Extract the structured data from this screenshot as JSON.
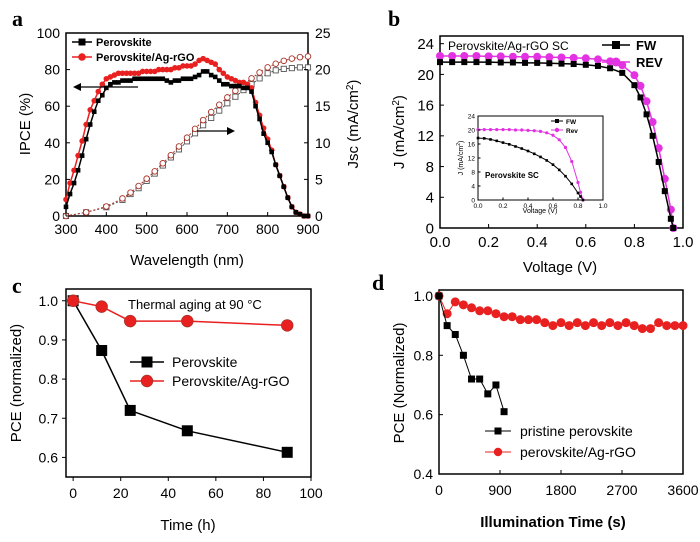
{
  "colors": {
    "black": "#000000",
    "red": "#e8201f",
    "magenta": "#e232e2",
    "brown": "#a83228",
    "grey": "#555555"
  },
  "chart_data": [
    {
      "panel": "a",
      "type": "line",
      "title": "",
      "xlabel": "Wavelength (nm)",
      "ylabel": "IPCE (%)",
      "y2label": "Jsc (mA/cm²)",
      "y2label_main": "Jsc (mA/cm",
      "y2label_sup": "2",
      "y2label_close": ")",
      "xlim": [
        300,
        900
      ],
      "ylim": [
        0,
        100
      ],
      "y2lim": [
        0,
        25
      ],
      "xticks": [
        300,
        400,
        500,
        600,
        700,
        800,
        900
      ],
      "yticks": [
        0,
        20,
        40,
        60,
        80,
        100
      ],
      "y2ticks": [
        0,
        5,
        10,
        15,
        20,
        25
      ],
      "legend": {
        "position": "top-left",
        "entries": [
          "Perovskite",
          "Perovskite/Ag-rGO"
        ]
      },
      "series": [
        {
          "name": "Perovskite",
          "kind": "IPCE",
          "axis": "left",
          "x": [
            300,
            310,
            320,
            330,
            340,
            350,
            360,
            370,
            380,
            390,
            400,
            410,
            420,
            430,
            440,
            450,
            460,
            470,
            480,
            490,
            500,
            510,
            520,
            530,
            540,
            550,
            560,
            570,
            580,
            590,
            600,
            610,
            620,
            630,
            640,
            650,
            660,
            670,
            680,
            690,
            700,
            710,
            720,
            730,
            740,
            750,
            760,
            770,
            780,
            790,
            800,
            810,
            820,
            830,
            840,
            850,
            860,
            870,
            880,
            890,
            900
          ],
          "y": [
            5,
            12,
            18,
            25,
            33,
            42,
            50,
            57,
            63,
            66,
            70,
            72,
            73,
            73,
            74,
            74,
            74,
            75,
            75,
            75,
            75,
            75,
            75,
            75,
            75,
            74,
            73,
            74,
            74,
            75,
            75,
            75,
            76,
            77,
            79,
            79,
            77,
            76,
            74,
            72,
            72,
            71,
            71,
            71,
            70,
            70,
            68,
            60,
            53,
            45,
            40,
            35,
            28,
            22,
            16,
            10,
            5,
            2,
            1,
            0,
            0
          ]
        },
        {
          "name": "Perovskite/Ag-rGO",
          "kind": "IPCE",
          "axis": "left",
          "x": [
            300,
            310,
            320,
            330,
            340,
            350,
            360,
            370,
            380,
            390,
            400,
            410,
            420,
            430,
            440,
            450,
            460,
            470,
            480,
            490,
            500,
            510,
            520,
            530,
            540,
            550,
            560,
            570,
            580,
            590,
            600,
            610,
            620,
            630,
            640,
            650,
            660,
            670,
            680,
            690,
            700,
            710,
            720,
            730,
            740,
            750,
            760,
            770,
            780,
            790,
            800,
            810,
            820,
            830,
            840,
            850,
            860,
            870,
            880,
            890,
            900
          ],
          "y": [
            9,
            18,
            25,
            33,
            41,
            50,
            58,
            63,
            68,
            72,
            75,
            76,
            77,
            78,
            78,
            78,
            78,
            78,
            78,
            79,
            79,
            79,
            79,
            80,
            80,
            80,
            80,
            81,
            81,
            82,
            82,
            82,
            83,
            85,
            86,
            85,
            84,
            83,
            80,
            78,
            76,
            75,
            74,
            73,
            73,
            72,
            70,
            62,
            55,
            48,
            42,
            36,
            28,
            22,
            16,
            10,
            5,
            2,
            1,
            0,
            0
          ]
        },
        {
          "name": "Perovskite",
          "kind": "Jsc",
          "axis": "right",
          "x": [
            300,
            350,
            400,
            440,
            460,
            480,
            500,
            520,
            540,
            560,
            580,
            600,
            620,
            640,
            660,
            680,
            700,
            720,
            740,
            760,
            780,
            800,
            820,
            840,
            860,
            880,
            900
          ],
          "y": [
            0,
            0.5,
            1.2,
            2.2,
            3.0,
            3.8,
            4.8,
            5.8,
            6.9,
            8.0,
            9.1,
            10.2,
            11.3,
            12.4,
            13.4,
            14.4,
            15.4,
            16.3,
            17.2,
            18.0,
            18.8,
            19.5,
            19.9,
            20.1,
            20.2,
            20.3,
            20.3
          ]
        },
        {
          "name": "Perovskite/Ag-rGO",
          "kind": "Jsc",
          "axis": "right",
          "x": [
            300,
            350,
            400,
            440,
            460,
            480,
            500,
            520,
            540,
            560,
            580,
            600,
            620,
            640,
            660,
            680,
            700,
            720,
            740,
            760,
            780,
            800,
            820,
            840,
            860,
            880,
            900
          ],
          "y": [
            0,
            0.5,
            1.3,
            2.4,
            3.2,
            4.1,
            5.1,
            6.1,
            7.2,
            8.3,
            9.5,
            10.7,
            11.9,
            13.1,
            14.2,
            15.2,
            16.2,
            17.1,
            18.0,
            18.8,
            19.6,
            20.3,
            20.8,
            21.2,
            21.5,
            21.7,
            21.8
          ]
        }
      ]
    },
    {
      "panel": "b",
      "type": "line",
      "title": "Perovskite/Ag-rGO SC",
      "xlabel": "Voltage (V)",
      "ylabel": "J (mA/cm²)",
      "ylabel_main": "J (mA/cm",
      "ylabel_sup": "2",
      "ylabel_close": ")",
      "xlim": [
        0.0,
        1.0
      ],
      "ylim": [
        0,
        25
      ],
      "xticks": [
        0.0,
        0.2,
        0.4,
        0.6,
        0.8,
        1.0
      ],
      "yticks": [
        0,
        4,
        8,
        12,
        16,
        20,
        24
      ],
      "legend": {
        "position": "top-right",
        "entries": [
          "FW",
          "REV"
        ]
      },
      "series": [
        {
          "name": "FW",
          "x": [
            0.0,
            0.05,
            0.1,
            0.15,
            0.2,
            0.25,
            0.3,
            0.35,
            0.4,
            0.45,
            0.5,
            0.55,
            0.6,
            0.65,
            0.7,
            0.75,
            0.8,
            0.825,
            0.85,
            0.875,
            0.9,
            0.925,
            0.95,
            0.96
          ],
          "y": [
            21.6,
            21.6,
            21.6,
            21.6,
            21.6,
            21.55,
            21.55,
            21.5,
            21.5,
            21.45,
            21.4,
            21.35,
            21.25,
            21.1,
            20.8,
            20.2,
            18.6,
            17.0,
            14.8,
            12.0,
            8.6,
            4.8,
            1.2,
            0
          ]
        },
        {
          "name": "REV",
          "x": [
            0.0,
            0.05,
            0.1,
            0.15,
            0.2,
            0.25,
            0.3,
            0.35,
            0.4,
            0.45,
            0.5,
            0.55,
            0.6,
            0.65,
            0.7,
            0.75,
            0.8,
            0.825,
            0.85,
            0.875,
            0.9,
            0.925,
            0.95,
            0.96
          ],
          "y": [
            22.4,
            22.4,
            22.4,
            22.4,
            22.35,
            22.35,
            22.3,
            22.3,
            22.3,
            22.25,
            22.2,
            22.15,
            22.1,
            21.95,
            21.7,
            21.2,
            19.9,
            18.5,
            16.5,
            13.8,
            10.4,
            6.4,
            2.4,
            0
          ]
        }
      ],
      "inset": {
        "title": "Perovskite SC",
        "xlabel": "Voltage (V)",
        "ylabel": "J (mA/cm²)",
        "ylabel_main": "J (mA/cm",
        "ylabel_sup": "2",
        "ylabel_close": ")",
        "xlim": [
          0.0,
          1.0
        ],
        "ylim": [
          0,
          24
        ],
        "xticks": [
          0.0,
          0.2,
          0.4,
          0.6,
          0.8,
          1.0
        ],
        "yticks": [
          0,
          4,
          8,
          12,
          16,
          20,
          24
        ],
        "legend": {
          "position": "top-right",
          "entries": [
            "FW",
            "Rev"
          ]
        },
        "series": [
          {
            "name": "FW",
            "x": [
              0.0,
              0.05,
              0.1,
              0.15,
              0.2,
              0.25,
              0.3,
              0.35,
              0.4,
              0.45,
              0.5,
              0.55,
              0.6,
              0.65,
              0.7,
              0.75,
              0.8,
              0.82,
              0.84
            ],
            "y": [
              17.7,
              17.6,
              17.3,
              16.9,
              16.4,
              15.9,
              15.3,
              14.7,
              14.0,
              13.2,
              12.3,
              11.3,
              10.1,
              8.6,
              6.8,
              4.6,
              2.0,
              1.0,
              0
            ]
          },
          {
            "name": "Rev",
            "x": [
              0.0,
              0.05,
              0.1,
              0.15,
              0.2,
              0.25,
              0.3,
              0.35,
              0.4,
              0.45,
              0.5,
              0.55,
              0.6,
              0.65,
              0.7,
              0.75,
              0.8,
              0.82,
              0.84
            ],
            "y": [
              20.1,
              20.1,
              20.1,
              20.1,
              20.1,
              20.1,
              20.0,
              20.0,
              19.9,
              19.8,
              19.6,
              19.2,
              18.5,
              17.2,
              15.0,
              11.0,
              5.0,
              2.2,
              0
            ]
          }
        ]
      }
    },
    {
      "panel": "c",
      "type": "line",
      "title": "Thermal aging at 90 °C",
      "xlabel": "Time (h)",
      "ylabel": "PCE (normalized)",
      "xlim": [
        -3,
        100
      ],
      "ylim": [
        0.55,
        1.03
      ],
      "xticks": [
        0,
        20,
        40,
        60,
        80,
        100
      ],
      "yticks": [
        0.6,
        0.7,
        0.8,
        0.9,
        1.0
      ],
      "legend": {
        "position": "center-right",
        "entries": [
          "Perovskite",
          "Perovskite/Ag-rGO"
        ]
      },
      "series": [
        {
          "name": "Perovskite",
          "x": [
            0,
            12,
            24,
            48,
            90
          ],
          "y": [
            1.0,
            0.873,
            0.72,
            0.668,
            0.613
          ]
        },
        {
          "name": "Perovskite/Ag-rGO",
          "x": [
            0,
            12,
            24,
            48,
            90
          ],
          "y": [
            1.0,
            0.985,
            0.948,
            0.948,
            0.937
          ]
        }
      ]
    },
    {
      "panel": "d",
      "type": "line",
      "title": "",
      "xlabel": "Illumination Time (s)",
      "ylabel": "PCE (Normalized)",
      "xlim": [
        0,
        3600
      ],
      "ylim": [
        0.4,
        1.02
      ],
      "xticks": [
        0,
        900,
        1800,
        2700,
        3600
      ],
      "yticks": [
        0.4,
        0.6,
        0.8,
        1.0
      ],
      "legend": {
        "position": "bottom-right",
        "entries": [
          "pristine perovskite",
          "perovskite/Ag-rGO"
        ]
      },
      "series": [
        {
          "name": "pristine perovskite",
          "x": [
            0,
            120,
            240,
            360,
            480,
            600,
            720,
            840,
            960
          ],
          "y": [
            1.0,
            0.9,
            0.87,
            0.8,
            0.72,
            0.72,
            0.67,
            0.7,
            0.61
          ]
        },
        {
          "name": "perovskite/Ag-rGO",
          "x": [
            0,
            120,
            240,
            360,
            480,
            600,
            720,
            840,
            960,
            1080,
            1200,
            1320,
            1440,
            1560,
            1680,
            1800,
            1920,
            2040,
            2160,
            2280,
            2400,
            2520,
            2640,
            2760,
            2880,
            3000,
            3120,
            3240,
            3360,
            3480,
            3600
          ],
          "y": [
            1.0,
            0.94,
            0.98,
            0.97,
            0.96,
            0.95,
            0.95,
            0.94,
            0.93,
            0.93,
            0.92,
            0.92,
            0.92,
            0.91,
            0.9,
            0.91,
            0.9,
            0.91,
            0.9,
            0.91,
            0.9,
            0.91,
            0.9,
            0.91,
            0.9,
            0.89,
            0.89,
            0.91,
            0.9,
            0.9,
            0.9
          ]
        }
      ]
    }
  ]
}
